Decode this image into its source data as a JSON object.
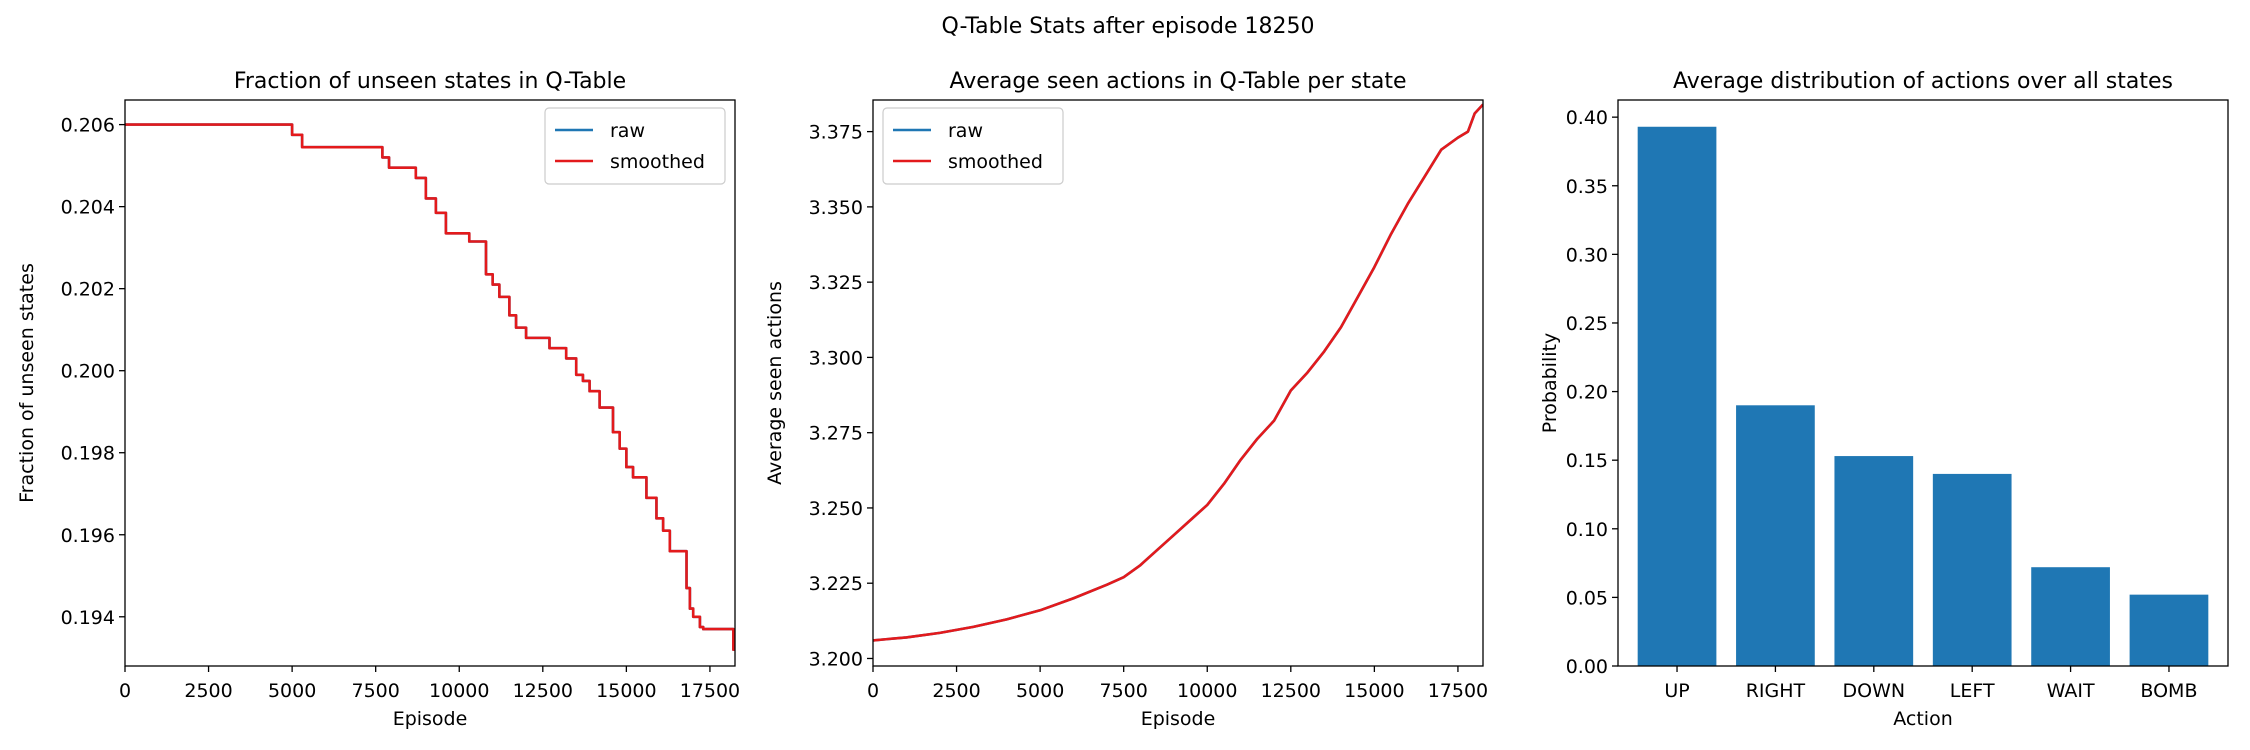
{
  "figure": {
    "suptitle": "Q-Table Stats after episode 18250"
  },
  "chart_data": [
    {
      "type": "line",
      "title": "Fraction of unseen states in Q-Table",
      "xlabel": "Episode",
      "ylabel": "Fraction of unseen states",
      "xlim": [
        0,
        18250
      ],
      "ylim": [
        0.1928,
        0.2066
      ],
      "xticks": [
        0,
        2500,
        5000,
        7500,
        10000,
        12500,
        15000,
        17500
      ],
      "xtick_labels": [
        "0",
        "2500",
        "5000",
        "7500",
        "10000",
        "12500",
        "15000",
        "17500"
      ],
      "yticks": [
        0.194,
        0.196,
        0.198,
        0.2,
        0.202,
        0.204,
        0.206
      ],
      "ytick_labels": [
        "0.194",
        "0.196",
        "0.198",
        "0.200",
        "0.202",
        "0.204",
        "0.206"
      ],
      "legend": {
        "position": "upper right",
        "entries": [
          "raw",
          "smoothed"
        ]
      },
      "series": [
        {
          "name": "raw",
          "color": "#1f77b4",
          "x": [
            0,
            5000,
            5000,
            5300,
            5300,
            7700,
            7700,
            7900,
            7900,
            8700,
            8700,
            9000,
            9000,
            9300,
            9300,
            9600,
            9600,
            10300,
            10300,
            10800,
            10800,
            11000,
            11000,
            11200,
            11200,
            11500,
            11500,
            11700,
            11700,
            12000,
            12000,
            12700,
            12700,
            13200,
            13200,
            13500,
            13500,
            13700,
            13700,
            13900,
            13900,
            14200,
            14200,
            14600,
            14600,
            14800,
            14800,
            15000,
            15000,
            15200,
            15200,
            15600,
            15600,
            15900,
            15900,
            16100,
            16100,
            16300,
            16300,
            16800,
            16800,
            16900,
            16900,
            17000,
            17000,
            17200,
            17200,
            17300,
            17300,
            18200,
            18200,
            18250
          ],
          "y": [
            0.206,
            0.206,
            0.20575,
            0.20575,
            0.20545,
            0.20545,
            0.2052,
            0.2052,
            0.20495,
            0.20495,
            0.2047,
            0.2047,
            0.2042,
            0.2042,
            0.20385,
            0.20385,
            0.20335,
            0.20335,
            0.20315,
            0.20315,
            0.20235,
            0.20235,
            0.2021,
            0.2021,
            0.2018,
            0.2018,
            0.20135,
            0.20135,
            0.20105,
            0.20105,
            0.2008,
            0.2008,
            0.20055,
            0.20055,
            0.2003,
            0.2003,
            0.1999,
            0.1999,
            0.19975,
            0.19975,
            0.1995,
            0.1995,
            0.1991,
            0.1991,
            0.1985,
            0.1985,
            0.1981,
            0.1981,
            0.19765,
            0.19765,
            0.1974,
            0.1974,
            0.1969,
            0.1969,
            0.1964,
            0.1964,
            0.1961,
            0.1961,
            0.1956,
            0.1956,
            0.1947,
            0.1947,
            0.1942,
            0.1942,
            0.194,
            0.194,
            0.19375,
            0.19375,
            0.1937,
            0.1937,
            0.1932,
            0.1932
          ]
        },
        {
          "name": "smoothed",
          "color": "#e31a1c",
          "x": [
            0,
            5000,
            5000,
            5300,
            5300,
            7700,
            7700,
            7900,
            7900,
            8700,
            8700,
            9000,
            9000,
            9300,
            9300,
            9600,
            9600,
            10300,
            10300,
            10800,
            10800,
            11000,
            11000,
            11200,
            11200,
            11500,
            11500,
            11700,
            11700,
            12000,
            12000,
            12700,
            12700,
            13200,
            13200,
            13500,
            13500,
            13700,
            13700,
            13900,
            13900,
            14200,
            14200,
            14600,
            14600,
            14800,
            14800,
            15000,
            15000,
            15200,
            15200,
            15600,
            15600,
            15900,
            15900,
            16100,
            16100,
            16300,
            16300,
            16800,
            16800,
            16900,
            16900,
            17000,
            17000,
            17200,
            17200,
            17300,
            17300,
            18200,
            18200,
            18250
          ],
          "y": [
            0.206,
            0.206,
            0.20575,
            0.20575,
            0.20545,
            0.20545,
            0.2052,
            0.2052,
            0.20495,
            0.20495,
            0.2047,
            0.2047,
            0.2042,
            0.2042,
            0.20385,
            0.20385,
            0.20335,
            0.20335,
            0.20315,
            0.20315,
            0.20235,
            0.20235,
            0.2021,
            0.2021,
            0.2018,
            0.2018,
            0.20135,
            0.20135,
            0.20105,
            0.20105,
            0.2008,
            0.2008,
            0.20055,
            0.20055,
            0.2003,
            0.2003,
            0.1999,
            0.1999,
            0.19975,
            0.19975,
            0.1995,
            0.1995,
            0.1991,
            0.1991,
            0.1985,
            0.1985,
            0.1981,
            0.1981,
            0.19765,
            0.19765,
            0.1974,
            0.1974,
            0.1969,
            0.1969,
            0.1964,
            0.1964,
            0.1961,
            0.1961,
            0.1956,
            0.1956,
            0.1947,
            0.1947,
            0.1942,
            0.1942,
            0.194,
            0.194,
            0.19375,
            0.19375,
            0.1937,
            0.1937,
            0.1932,
            0.1932
          ]
        }
      ]
    },
    {
      "type": "line",
      "title": "Average seen actions in Q-Table per state",
      "xlabel": "Episode",
      "ylabel": "Average seen actions",
      "xlim": [
        0,
        18250
      ],
      "ylim": [
        3.1975,
        3.3855
      ],
      "xticks": [
        0,
        2500,
        5000,
        7500,
        10000,
        12500,
        15000,
        17500
      ],
      "xtick_labels": [
        "0",
        "2500",
        "5000",
        "7500",
        "10000",
        "12500",
        "15000",
        "17500"
      ],
      "yticks": [
        3.2,
        3.225,
        3.25,
        3.275,
        3.3,
        3.325,
        3.35,
        3.375
      ],
      "ytick_labels": [
        "3.200",
        "3.225",
        "3.250",
        "3.275",
        "3.300",
        "3.325",
        "3.350",
        "3.375"
      ],
      "legend": {
        "position": "upper left",
        "entries": [
          "raw",
          "smoothed"
        ]
      },
      "series": [
        {
          "name": "raw",
          "color": "#1f77b4",
          "x": [
            0,
            1000,
            2000,
            3000,
            4000,
            5000,
            6000,
            7000,
            7500,
            8000,
            8500,
            9000,
            9500,
            10000,
            10500,
            11000,
            11500,
            12000,
            12500,
            13000,
            13500,
            14000,
            14500,
            15000,
            15500,
            16000,
            16500,
            17000,
            17500,
            17800,
            18000,
            18250
          ],
          "y": [
            3.206,
            3.207,
            3.2085,
            3.2105,
            3.213,
            3.216,
            3.22,
            3.2245,
            3.227,
            3.231,
            3.236,
            3.241,
            3.246,
            3.251,
            3.258,
            3.266,
            3.273,
            3.279,
            3.289,
            3.295,
            3.302,
            3.31,
            3.32,
            3.33,
            3.341,
            3.351,
            3.36,
            3.369,
            3.373,
            3.375,
            3.381,
            3.384
          ]
        },
        {
          "name": "smoothed",
          "color": "#e31a1c",
          "x": [
            0,
            1000,
            2000,
            3000,
            4000,
            5000,
            6000,
            7000,
            7500,
            8000,
            8500,
            9000,
            9500,
            10000,
            10500,
            11000,
            11500,
            12000,
            12500,
            13000,
            13500,
            14000,
            14500,
            15000,
            15500,
            16000,
            16500,
            17000,
            17500,
            17800,
            18000,
            18250
          ],
          "y": [
            3.206,
            3.207,
            3.2085,
            3.2105,
            3.213,
            3.216,
            3.22,
            3.2245,
            3.227,
            3.231,
            3.236,
            3.241,
            3.246,
            3.251,
            3.258,
            3.266,
            3.273,
            3.279,
            3.289,
            3.295,
            3.302,
            3.31,
            3.32,
            3.33,
            3.341,
            3.351,
            3.36,
            3.369,
            3.373,
            3.375,
            3.381,
            3.384
          ]
        }
      ]
    },
    {
      "type": "bar",
      "title": "Average distribution of actions over all states",
      "xlabel": "Action",
      "ylabel": "Probability",
      "ylim": [
        0,
        0.4125
      ],
      "yticks": [
        0.0,
        0.05,
        0.1,
        0.15,
        0.2,
        0.25,
        0.3,
        0.35,
        0.4
      ],
      "ytick_labels": [
        "0.00",
        "0.05",
        "0.10",
        "0.15",
        "0.20",
        "0.25",
        "0.30",
        "0.35",
        "0.40"
      ],
      "categories": [
        "UP",
        "RIGHT",
        "DOWN",
        "LEFT",
        "WAIT",
        "BOMB"
      ],
      "values": [
        0.393,
        0.19,
        0.153,
        0.14,
        0.072,
        0.052
      ],
      "color": "#1f77b4"
    }
  ]
}
